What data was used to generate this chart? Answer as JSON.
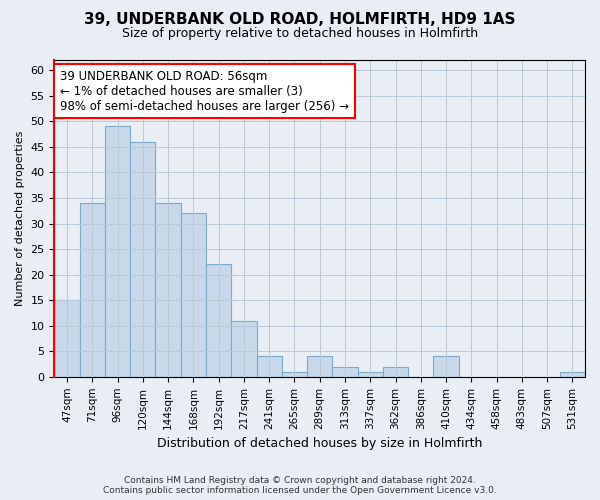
{
  "title1": "39, UNDERBANK OLD ROAD, HOLMFIRTH, HD9 1AS",
  "title2": "Size of property relative to detached houses in Holmfirth",
  "xlabel": "Distribution of detached houses by size in Holmfirth",
  "ylabel": "Number of detached properties",
  "bar_labels": [
    "47sqm",
    "71sqm",
    "96sqm",
    "120sqm",
    "144sqm",
    "168sqm",
    "192sqm",
    "217sqm",
    "241sqm",
    "265sqm",
    "289sqm",
    "313sqm",
    "337sqm",
    "362sqm",
    "386sqm",
    "410sqm",
    "434sqm",
    "458sqm",
    "483sqm",
    "507sqm",
    "531sqm"
  ],
  "bar_values": [
    15,
    34,
    49,
    46,
    34,
    32,
    22,
    11,
    4,
    1,
    4,
    2,
    1,
    2,
    0,
    4,
    0,
    0,
    0,
    0,
    1
  ],
  "bar_color": "#c8d8ea",
  "bar_edge_color": "#7aaac8",
  "annotation_text": "39 UNDERBANK OLD ROAD: 56sqm\n← 1% of detached houses are smaller (3)\n98% of semi-detached houses are larger (256) →",
  "annotation_box_color": "white",
  "annotation_box_edge_color": "red",
  "ylim": [
    0,
    62
  ],
  "yticks": [
    0,
    5,
    10,
    15,
    20,
    25,
    30,
    35,
    40,
    45,
    50,
    55,
    60
  ],
  "footer_line1": "Contains HM Land Registry data © Crown copyright and database right 2024.",
  "footer_line2": "Contains public sector information licensed under the Open Government Licence v3.0.",
  "bg_color": "#e8eef4",
  "plot_bg_color": "#e8eef4",
  "grid_color": "#b8cad8",
  "title1_fontsize": 11,
  "title2_fontsize": 9,
  "ylabel_fontsize": 8,
  "xlabel_fontsize": 9
}
